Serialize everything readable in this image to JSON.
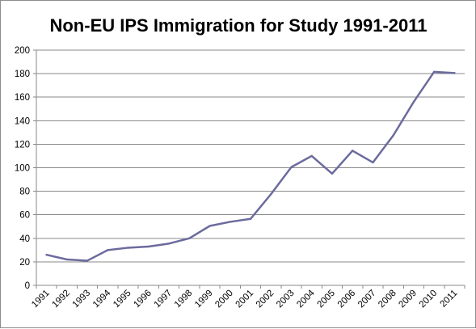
{
  "chart_data": {
    "type": "line",
    "title": "Non-EU IPS Immigration for Study 1991-2011",
    "xlabel": "",
    "ylabel": "",
    "categories": [
      "1991",
      "1992",
      "1993",
      "1994",
      "1995",
      "1996",
      "1997",
      "1998",
      "1999",
      "2000",
      "2001",
      "2002",
      "2003",
      "2004",
      "2005",
      "2006",
      "2007",
      "2008",
      "2009",
      "2010",
      "2011"
    ],
    "series": [
      {
        "values": [
          26,
          22,
          21,
          30,
          32,
          33,
          35.5,
          40,
          50.5,
          54,
          56.5,
          77.5,
          100.5,
          110,
          95,
          114.5,
          104.5,
          127.5,
          156,
          181.5,
          180.5
        ],
        "color": "#6b6b9d"
      }
    ],
    "ylim": [
      0,
      200
    ],
    "yticks": [
      0,
      20,
      40,
      60,
      80,
      100,
      120,
      140,
      160,
      180,
      200
    ],
    "grid": true,
    "legend": "none"
  }
}
